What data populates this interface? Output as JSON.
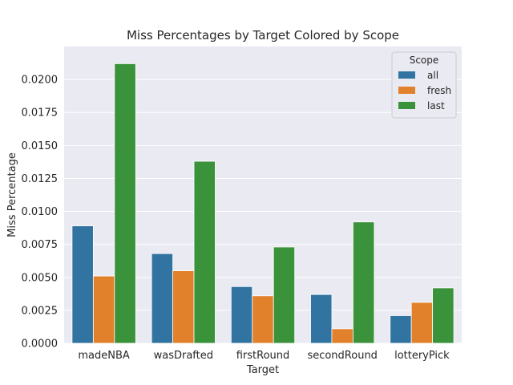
{
  "chart_data": {
    "type": "bar",
    "title": "Miss Percentages by Target Colored by Scope",
    "xlabel": "Target",
    "ylabel": "Miss Percentage",
    "categories": [
      "madeNBA",
      "wasDrafted",
      "firstRound",
      "secondRound",
      "lotteryPick"
    ],
    "series": [
      {
        "name": "all",
        "color": "#3274a1",
        "values": [
          0.0089,
          0.0068,
          0.0043,
          0.0037,
          0.0021
        ]
      },
      {
        "name": "fresh",
        "color": "#e1812c",
        "values": [
          0.0051,
          0.0055,
          0.0036,
          0.0011,
          0.0031
        ]
      },
      {
        "name": "last",
        "color": "#3a923a",
        "values": [
          0.0212,
          0.0138,
          0.0073,
          0.0092,
          0.0042
        ]
      }
    ],
    "ylim": [
      0,
      0.0225
    ],
    "yticks": [
      "0.0000",
      "0.0025",
      "0.0050",
      "0.0075",
      "0.0100",
      "0.0125",
      "0.0150",
      "0.0175",
      "0.0200"
    ],
    "legend": {
      "title": "Scope",
      "placement": "top-right"
    },
    "grid": true,
    "background_color": "#eaeaf2"
  }
}
